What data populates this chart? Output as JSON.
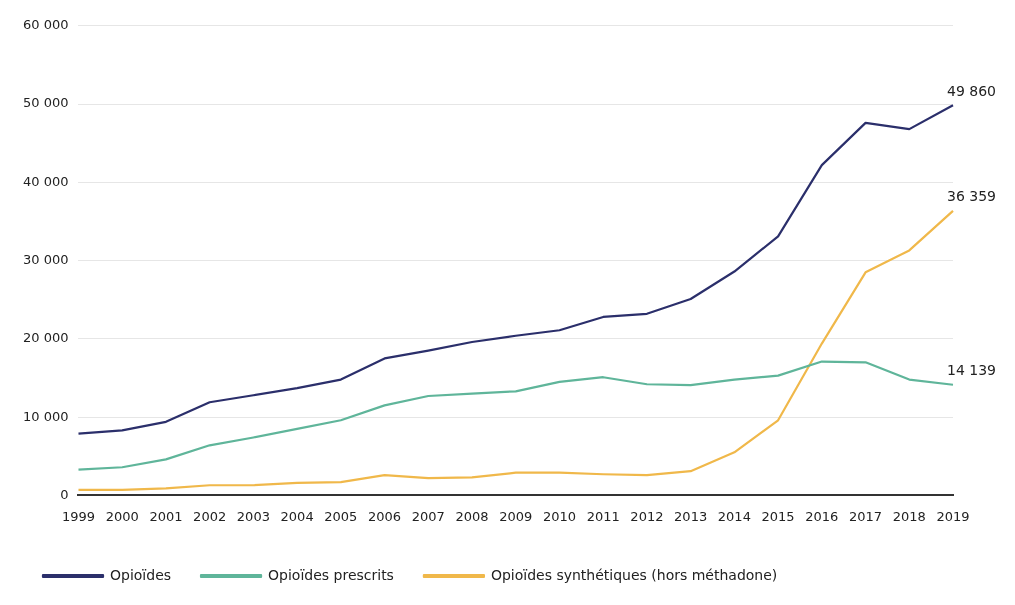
{
  "chart_data": {
    "type": "line",
    "categories": [
      "1999",
      "2000",
      "2001",
      "2002",
      "2003",
      "2004",
      "2005",
      "2006",
      "2007",
      "2008",
      "2009",
      "2010",
      "2011",
      "2012",
      "2013",
      "2014",
      "2015",
      "2016",
      "2017",
      "2018",
      "2019"
    ],
    "series": [
      {
        "name": "Opioïdes",
        "color": "#2b2f6b",
        "values": [
          7900,
          8300,
          9400,
          11900,
          12800,
          13700,
          14800,
          17500,
          18500,
          19600,
          20400,
          21100,
          22800,
          23200,
          25100,
          28600,
          33100,
          42200,
          47600,
          46800,
          49860
        ],
        "value_labels": [
          null,
          null,
          null,
          null,
          null,
          null,
          null,
          null,
          null,
          null,
          null,
          null,
          null,
          null,
          null,
          null,
          null,
          null,
          null,
          null,
          "49 860"
        ]
      },
      {
        "name": "Opioïdes prescrits",
        "color": "#5fb59a",
        "values": [
          3300,
          3600,
          4600,
          6400,
          7400,
          8500,
          9600,
          11500,
          12700,
          13000,
          13300,
          14500,
          15100,
          14200,
          14100,
          14800,
          15300,
          17100,
          17000,
          14800,
          14139
        ],
        "value_labels": [
          null,
          null,
          null,
          null,
          null,
          null,
          null,
          null,
          null,
          null,
          null,
          null,
          null,
          null,
          null,
          null,
          null,
          null,
          null,
          null,
          "14 139"
        ]
      },
      {
        "name": "Opioïdes synthétiques (hors méthadone)",
        "color": "#f0b84a",
        "values": [
          700,
          700,
          900,
          1300,
          1300,
          1600,
          1700,
          2600,
          2200,
          2300,
          2900,
          2900,
          2700,
          2600,
          3100,
          5500,
          9600,
          19400,
          28500,
          31300,
          36359
        ],
        "value_labels": [
          null,
          null,
          null,
          null,
          null,
          null,
          null,
          null,
          null,
          null,
          null,
          null,
          null,
          null,
          null,
          null,
          null,
          null,
          null,
          null,
          "36 359"
        ]
      }
    ],
    "ylim": [
      0,
      60000
    ],
    "yticks": [
      {
        "value": 0,
        "label": "0"
      },
      {
        "value": 10000,
        "label": "10 000"
      },
      {
        "value": 20000,
        "label": "20 000"
      },
      {
        "value": 30000,
        "label": "30 000"
      },
      {
        "value": 40000,
        "label": "40 000"
      },
      {
        "value": 50000,
        "label": "50 000"
      },
      {
        "value": 60000,
        "label": "60 000"
      }
    ],
    "grid": "y",
    "legend": "bottom",
    "marker": "none",
    "line_style": "solid"
  }
}
